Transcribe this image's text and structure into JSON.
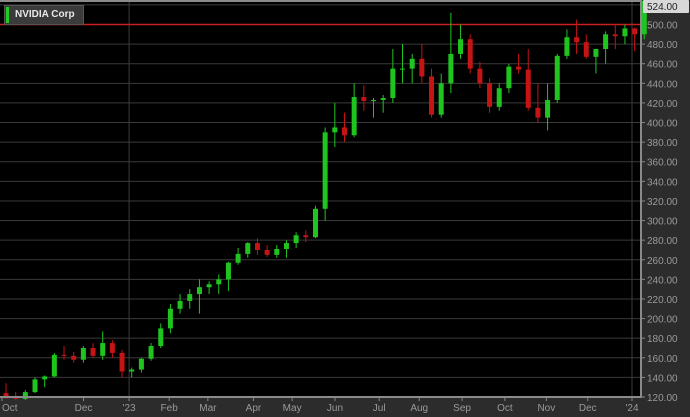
{
  "chart_data": {
    "type": "candlestick",
    "title": "NVIDIA Corp",
    "ylim": [
      120,
      525
    ],
    "y_ticks": [
      "120.00",
      "140.00",
      "160.00",
      "180.00",
      "200.00",
      "220.00",
      "240.00",
      "260.00",
      "280.00",
      "300.00",
      "320.00",
      "340.00",
      "360.00",
      "380.00",
      "400.00",
      "420.00",
      "440.00",
      "460.00",
      "480.00",
      "500.00"
    ],
    "last_price_label": "524.00",
    "reference_line": 500,
    "x_ticks": [
      {
        "label": "Oct",
        "date": "2022-10-03"
      },
      {
        "label": "Dec",
        "date": "2022-12-01"
      },
      {
        "label": "'23",
        "date": "2023-01-03"
      },
      {
        "label": "Feb",
        "date": "2023-02-01"
      },
      {
        "label": "Mar",
        "date": "2023-03-01"
      },
      {
        "label": "Apr",
        "date": "2023-04-03"
      },
      {
        "label": "May",
        "date": "2023-05-01"
      },
      {
        "label": "Jun",
        "date": "2023-06-01"
      },
      {
        "label": "Jul",
        "date": "2023-07-03"
      },
      {
        "label": "Aug",
        "date": "2023-08-01"
      },
      {
        "label": "Sep",
        "date": "2023-09-01"
      },
      {
        "label": "Oct",
        "date": "2023-10-02"
      },
      {
        "label": "Nov",
        "date": "2023-11-01"
      },
      {
        "label": "Dec",
        "date": "2023-12-01"
      },
      {
        "label": "'24",
        "date": "2024-01-02"
      }
    ],
    "colors": {
      "up": "#1fc41f",
      "down": "#c41414",
      "reference": "#c81e1e",
      "background": "#000000",
      "grid": "#3a3a3a",
      "axis_bg": "#2c2c2c",
      "axis_text": "#9a9a9a"
    },
    "grid": true,
    "bars": [
      [
        "2022-10-03",
        124,
        134,
        118,
        121
      ],
      [
        "2022-10-10",
        121,
        125,
        117,
        118
      ],
      [
        "2022-10-17",
        118,
        127,
        117,
        125
      ],
      [
        "2022-10-24",
        125,
        140,
        124,
        138
      ],
      [
        "2022-10-31",
        138,
        142,
        130,
        141
      ],
      [
        "2022-11-07",
        141,
        165,
        140,
        163
      ],
      [
        "2022-11-14",
        163,
        172,
        158,
        162
      ],
      [
        "2022-11-21",
        162,
        166,
        155,
        158
      ],
      [
        "2022-11-28",
        158,
        172,
        155,
        170
      ],
      [
        "2022-12-05",
        170,
        175,
        160,
        162
      ],
      [
        "2022-12-12",
        162,
        187,
        158,
        175
      ],
      [
        "2022-12-19",
        175,
        178,
        160,
        165
      ],
      [
        "2022-12-26",
        165,
        168,
        140,
        146
      ],
      [
        "2023-01-02",
        146,
        150,
        140,
        148
      ],
      [
        "2023-01-09",
        148,
        160,
        145,
        159
      ],
      [
        "2023-01-16",
        159,
        175,
        157,
        172
      ],
      [
        "2023-01-23",
        172,
        195,
        170,
        190
      ],
      [
        "2023-01-30",
        190,
        215,
        185,
        210
      ],
      [
        "2023-02-06",
        210,
        225,
        205,
        218
      ],
      [
        "2023-02-13",
        218,
        230,
        210,
        225
      ],
      [
        "2023-02-20",
        225,
        240,
        205,
        232
      ],
      [
        "2023-02-27",
        232,
        238,
        225,
        235
      ],
      [
        "2023-03-06",
        235,
        245,
        225,
        240
      ],
      [
        "2023-03-13",
        240,
        258,
        228,
        257
      ],
      [
        "2023-03-20",
        257,
        272,
        255,
        266
      ],
      [
        "2023-03-27",
        266,
        278,
        262,
        277
      ],
      [
        "2023-04-03",
        277,
        282,
        265,
        270
      ],
      [
        "2023-04-10",
        270,
        275,
        263,
        265
      ],
      [
        "2023-04-17",
        265,
        275,
        262,
        271
      ],
      [
        "2023-04-24",
        271,
        280,
        262,
        277
      ],
      [
        "2023-05-01",
        277,
        288,
        272,
        285
      ],
      [
        "2023-05-08",
        285,
        290,
        278,
        283
      ],
      [
        "2023-05-15",
        283,
        315,
        282,
        312
      ],
      [
        "2023-05-22",
        312,
        395,
        300,
        390
      ],
      [
        "2023-05-29",
        390,
        420,
        375,
        395
      ],
      [
        "2023-06-05",
        395,
        410,
        380,
        387
      ],
      [
        "2023-06-12",
        387,
        440,
        385,
        426
      ],
      [
        "2023-06-19",
        426,
        438,
        412,
        422
      ],
      [
        "2023-06-26",
        422,
        425,
        405,
        423
      ],
      [
        "2023-07-03",
        423,
        428,
        410,
        425
      ],
      [
        "2023-07-10",
        425,
        475,
        420,
        455
      ],
      [
        "2023-07-17",
        455,
        480,
        440,
        455
      ],
      [
        "2023-07-24",
        455,
        470,
        440,
        465
      ],
      [
        "2023-07-31",
        465,
        480,
        440,
        447
      ],
      [
        "2023-08-07",
        447,
        455,
        405,
        408
      ],
      [
        "2023-08-14",
        408,
        450,
        405,
        440
      ],
      [
        "2023-08-21",
        440,
        512,
        430,
        470
      ],
      [
        "2023-08-28",
        470,
        500,
        465,
        485
      ],
      [
        "2023-09-04",
        485,
        490,
        450,
        455
      ],
      [
        "2023-09-11",
        455,
        462,
        435,
        440
      ],
      [
        "2023-09-18",
        440,
        445,
        410,
        416
      ],
      [
        "2023-09-25",
        416,
        440,
        412,
        435
      ],
      [
        "2023-10-02",
        435,
        460,
        430,
        457
      ],
      [
        "2023-10-09",
        457,
        470,
        450,
        454
      ],
      [
        "2023-10-16",
        454,
        475,
        412,
        415
      ],
      [
        "2023-10-23",
        415,
        440,
        400,
        405
      ],
      [
        "2023-10-30",
        405,
        440,
        392,
        423
      ],
      [
        "2023-11-06",
        423,
        470,
        420,
        468
      ],
      [
        "2023-11-13",
        468,
        495,
        465,
        487
      ],
      [
        "2023-11-20",
        487,
        505,
        470,
        482
      ],
      [
        "2023-11-27",
        482,
        490,
        465,
        467
      ],
      [
        "2023-12-04",
        467,
        475,
        450,
        475
      ],
      [
        "2023-12-11",
        475,
        493,
        460,
        490
      ],
      [
        "2023-12-18",
        490,
        500,
        475,
        488
      ],
      [
        "2023-12-25",
        488,
        500,
        480,
        496
      ],
      [
        "2024-01-01",
        496,
        497,
        473,
        490
      ],
      [
        "2024-01-08",
        490,
        524,
        485,
        524
      ]
    ]
  }
}
